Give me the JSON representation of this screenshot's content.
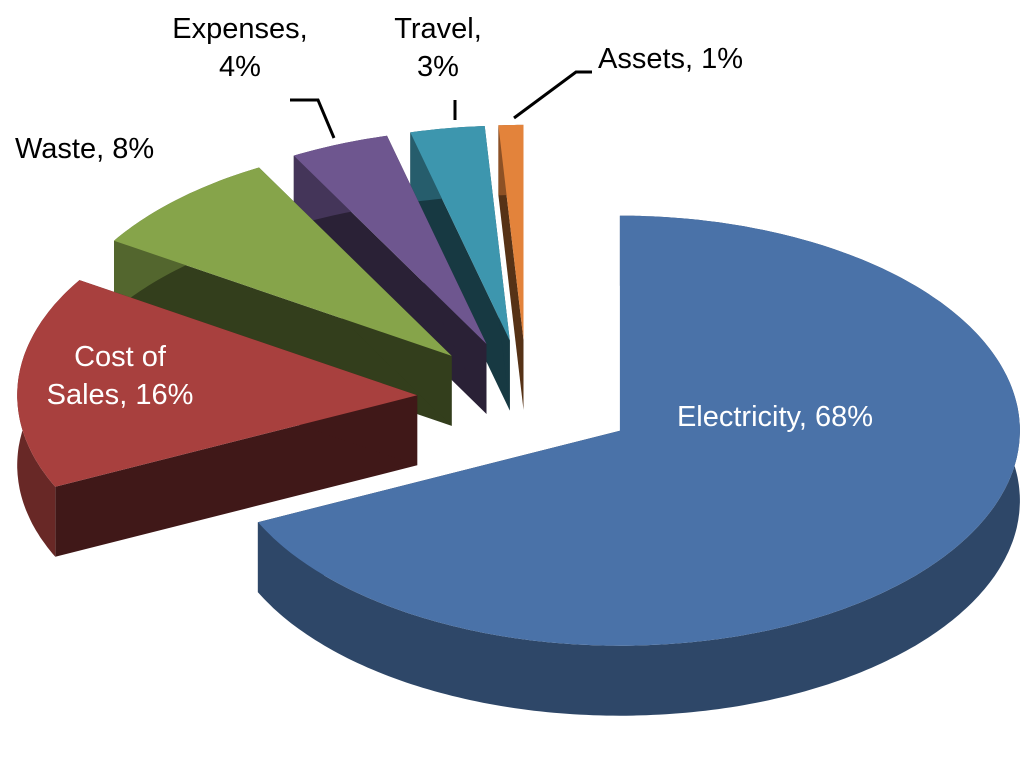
{
  "chart_data": {
    "type": "pie3d",
    "categories": [
      "Electricity",
      "Cost of Sales",
      "Waste",
      "Expenses",
      "Travel",
      "Assets"
    ],
    "values": [
      68,
      16,
      8,
      4,
      3,
      1
    ],
    "value_labels": [
      "68%",
      "16%",
      "8%",
      "4%",
      "3%",
      "1%"
    ],
    "label_separator": ",",
    "colors": [
      "#4a72a8",
      "#a8403e",
      "#86a44a",
      "#6e568f",
      "#3d96ae",
      "#e3833b"
    ]
  }
}
